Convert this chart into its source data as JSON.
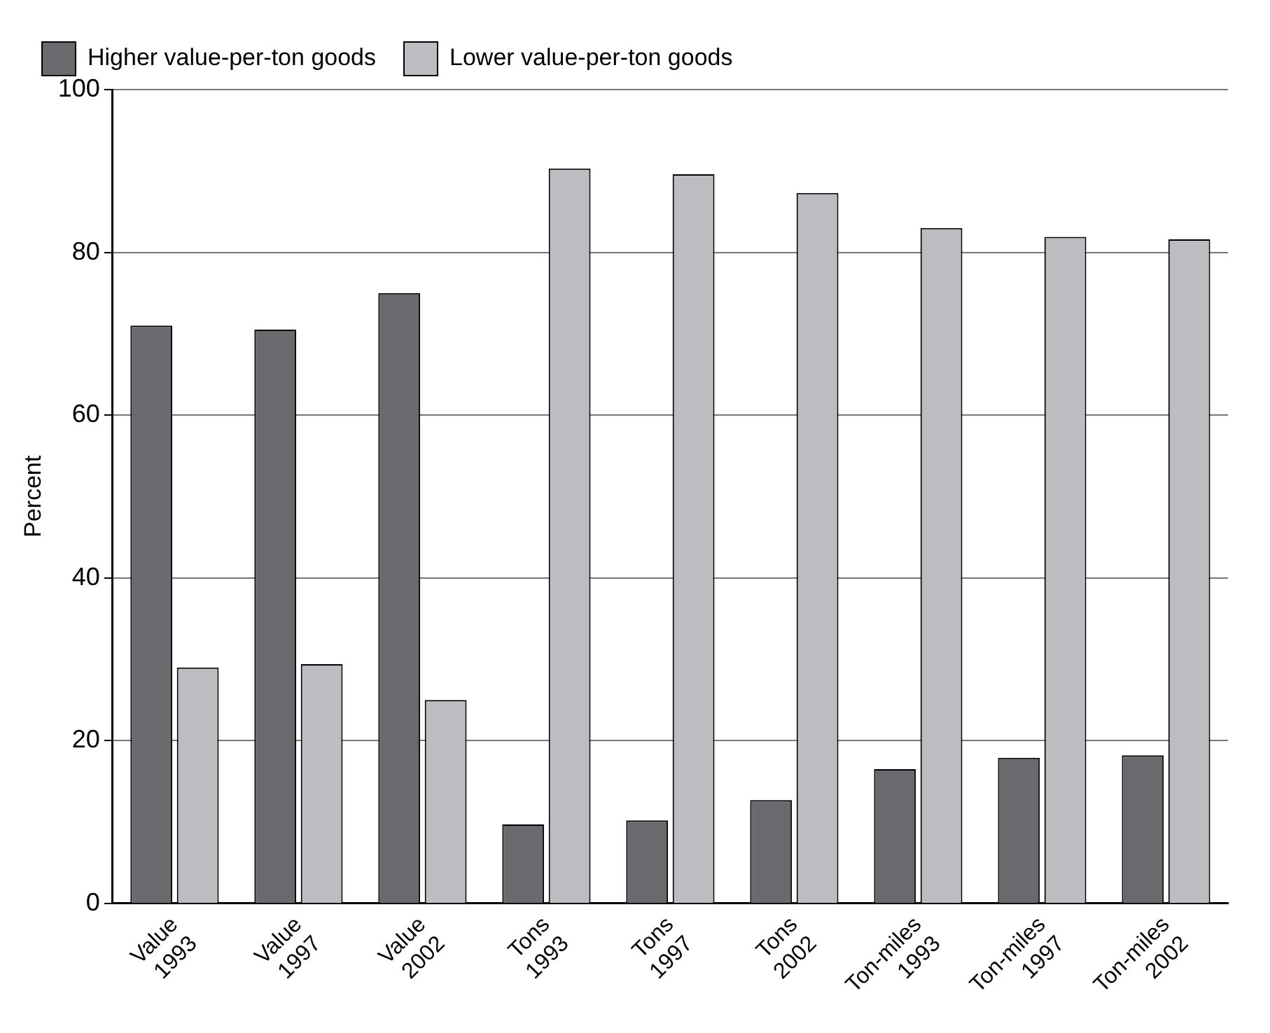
{
  "chart_data": {
    "type": "bar",
    "ylabel": "Percent",
    "categories": [
      "Value 1993",
      "Value 1997",
      "Value 2002",
      "Tons 1993",
      "Tons 1997",
      "Tons 2002",
      "Ton-miles 1993",
      "Ton-miles 1997",
      "Ton-miles 2002"
    ],
    "series": [
      {
        "name": "Higher value-per-ton goods",
        "color": "#696a6e",
        "values": [
          71,
          70.5,
          75,
          9.7,
          10.2,
          12.7,
          16.5,
          17.9,
          18.2
        ]
      },
      {
        "name": "Lower value-per-ton goods",
        "color": "#bcbdc1",
        "values": [
          29,
          29.4,
          25,
          90.3,
          89.6,
          87.3,
          83,
          81.9,
          81.6
        ]
      }
    ],
    "ylim": [
      0,
      100
    ],
    "yticks": [
      0,
      20,
      40,
      60,
      80,
      100
    ],
    "grid": "y",
    "legend": "top"
  }
}
